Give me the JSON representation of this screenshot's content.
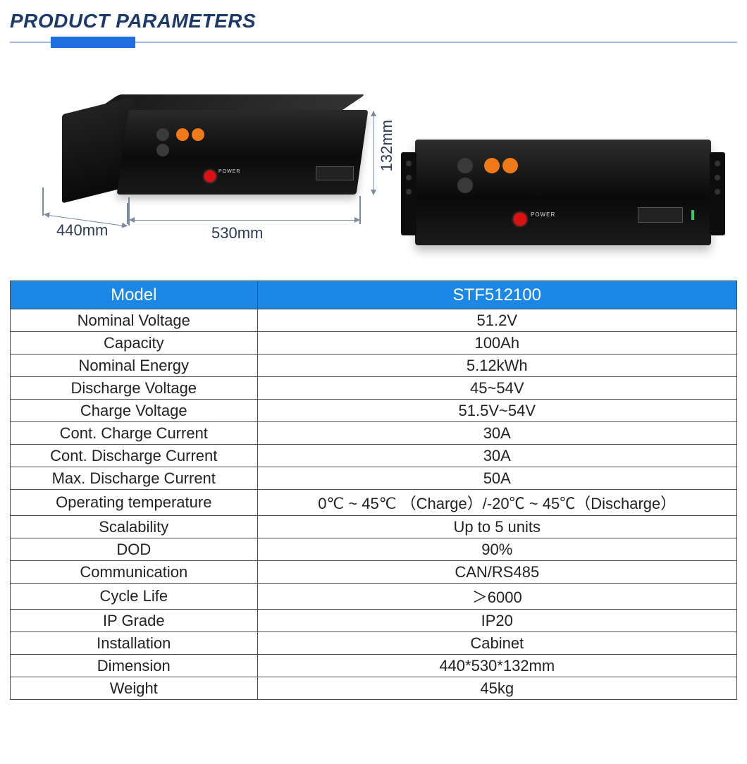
{
  "heading": "PRODUCT PARAMETERS",
  "colors": {
    "heading_text": "#1b3a6b",
    "underline_thin": "#9dbbe0",
    "underline_bar": "#1f6fe0",
    "table_header_bg": "#1b87e6",
    "table_header_text": "#ffffff",
    "table_border": "#4a4a4a",
    "dim_line": "#7a8aa0",
    "device_body": "#0b0b0b",
    "port_orange": "#f07a18",
    "power_button": "#dd1111"
  },
  "dimensions": {
    "depth_label": "440mm",
    "width_label": "530mm",
    "height_label": "132mm"
  },
  "device_labels": {
    "power": "POWER"
  },
  "table": {
    "header": {
      "label": "Model",
      "value": "STF512100"
    },
    "rows": [
      {
        "label": "Nominal Voltage",
        "value": "51.2V"
      },
      {
        "label": "Capacity",
        "value": "100Ah"
      },
      {
        "label": "Nominal Energy",
        "value": "5.12kWh"
      },
      {
        "label": "Discharge Voltage",
        "value": "45~54V"
      },
      {
        "label": "Charge Voltage",
        "value": "51.5V~54V"
      },
      {
        "label": "Cont. Charge Current",
        "value": "30A"
      },
      {
        "label": "Cont. Discharge Current",
        "value": "30A"
      },
      {
        "label": "Max. Discharge Current",
        "value": "50A"
      },
      {
        "label": "Operating temperature",
        "value": "0℃ ~ 45℃ （Charge）/-20℃ ~ 45℃（Discharge）"
      },
      {
        "label": "Scalability",
        "value": "Up to 5 units"
      },
      {
        "label": "DOD",
        "value": "90%"
      },
      {
        "label": "Communication",
        "value": "CAN/RS485"
      },
      {
        "label": "Cycle Life",
        "value": "＞6000"
      },
      {
        "label": "IP Grade",
        "value": "IP20"
      },
      {
        "label": "Installation",
        "value": "Cabinet"
      },
      {
        "label": "Dimension",
        "value": "440*530*132mm"
      },
      {
        "label": "Weight",
        "value": "45kg"
      }
    ]
  }
}
